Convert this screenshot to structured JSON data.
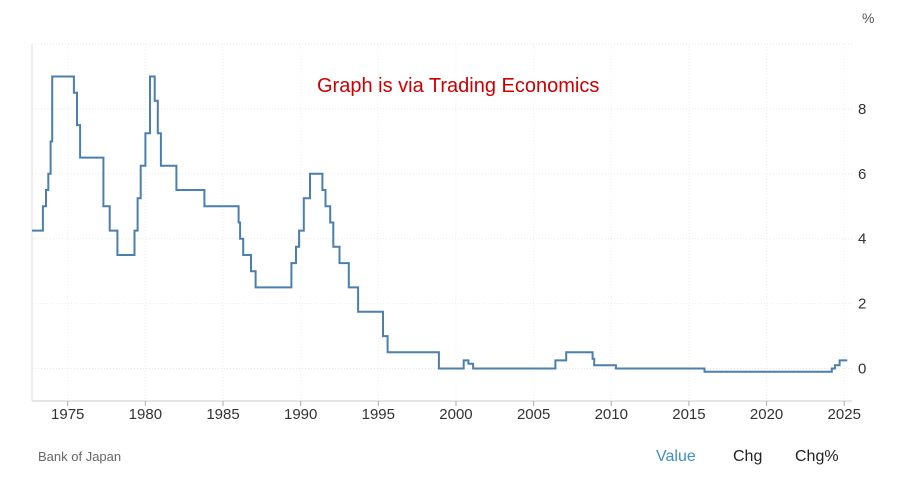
{
  "chart_data": {
    "type": "line",
    "annotation": "Graph is via Trading Economics",
    "y_unit": "%",
    "xlim": [
      1972.7,
      2025.5
    ],
    "ylim": [
      -1,
      10
    ],
    "x_ticks": [
      1975,
      1980,
      1985,
      1990,
      1995,
      2000,
      2005,
      2010,
      2015,
      2020,
      2025
    ],
    "y_ticks": [
      0,
      2,
      4,
      6,
      8
    ],
    "grid": true,
    "step": true,
    "series_color": "#4a7fae",
    "series": [
      {
        "x": [
          1972.7,
          1973.4,
          1973.6,
          1973.75,
          1973.9,
          1974.0,
          1974.3,
          1975.4,
          1975.6,
          1975.8,
          1976.0,
          1977.3,
          1977.7,
          1978.2,
          1979.3,
          1979.5,
          1979.7,
          1980.0,
          1980.3,
          1980.6,
          1980.8,
          1981.0,
          1981.3,
          1982.0,
          1983.8,
          1986.0,
          1986.1,
          1986.3,
          1986.8,
          1987.1,
          1989.4,
          1989.7,
          1989.9,
          1990.2,
          1990.6,
          1991.4,
          1991.6,
          1991.9,
          1992.1,
          1992.5,
          1993.1,
          1993.7,
          1995.3,
          1995.6,
          1998.9,
          2000.5,
          2000.8,
          2001.1,
          2001.3,
          2006.4,
          2007.1,
          2008.8,
          2008.9,
          2010.3,
          2016.0,
          2024.2,
          2024.4,
          2024.7,
          2025.2
        ],
        "y": [
          4.25,
          5.0,
          5.5,
          6.0,
          7.0,
          9.0,
          9.0,
          8.5,
          7.5,
          6.5,
          6.5,
          5.0,
          4.25,
          3.5,
          4.25,
          5.25,
          6.25,
          7.25,
          9.0,
          8.25,
          7.25,
          6.25,
          6.25,
          5.5,
          5.0,
          4.5,
          4.0,
          3.5,
          3.0,
          2.5,
          3.25,
          3.75,
          4.25,
          5.25,
          6.0,
          5.5,
          5.0,
          4.5,
          3.75,
          3.25,
          2.5,
          1.75,
          1.0,
          0.5,
          0.0,
          0.25,
          0.15,
          0.0,
          0.0,
          0.25,
          0.5,
          0.3,
          0.1,
          0.0,
          -0.1,
          0.0,
          0.1,
          0.25,
          0.25
        ]
      }
    ]
  },
  "footer": {
    "source": "Bank of Japan",
    "tabs": [
      "Value",
      "Chg",
      "Chg%"
    ],
    "active_tab": "Value"
  }
}
